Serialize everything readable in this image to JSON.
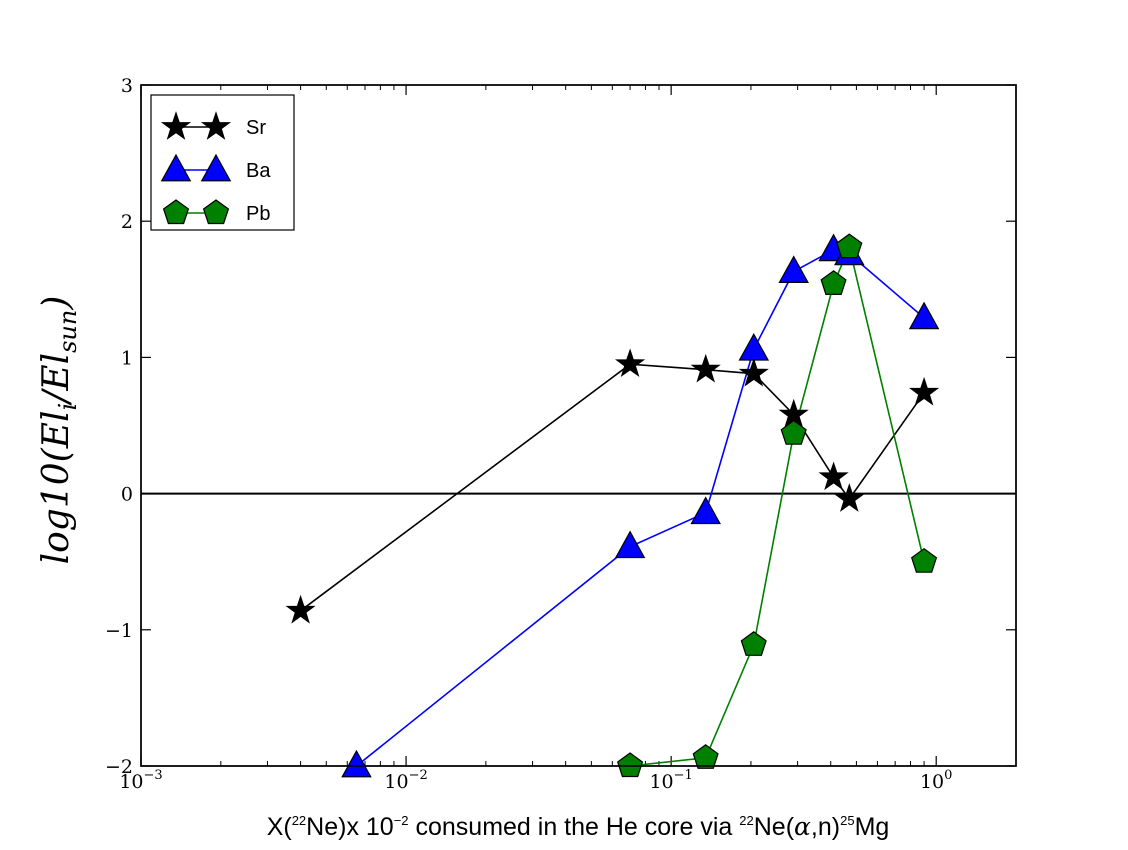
{
  "chart_data": {
    "type": "line",
    "xscale": "log",
    "xlim": [
      0.001,
      2.0
    ],
    "ylim": [
      -2,
      3
    ],
    "xticks": [
      {
        "base": "10",
        "exp": "−3"
      },
      {
        "base": "10",
        "exp": "−2"
      },
      {
        "base": "10",
        "exp": "−1"
      },
      {
        "base": "10",
        "exp": "0"
      }
    ],
    "yticks": [
      "−2",
      "−1",
      "0",
      "1",
      "2",
      "3"
    ],
    "xlabel": {
      "pre": "X(",
      "sup1": "22",
      "mid1": "Ne)x 10",
      "sup2": "−2",
      "mid2": " consumed in the He core via ",
      "sup3": "22",
      "mid3": "Ne(",
      "alpha": "α",
      "mid4": ",n)",
      "sup4": "25",
      "post": "Mg"
    },
    "ylabel": {
      "pre": "log10(El",
      "sub1": "i",
      "mid": "/El",
      "sub2": "sun",
      "post": ")"
    },
    "hline": 0,
    "legend_position": "top-left",
    "series": [
      {
        "name": "Sr",
        "marker": "star",
        "color": "#000000",
        "x": [
          0.004,
          0.07,
          0.135,
          0.205,
          0.29,
          0.41,
          0.47,
          0.9
        ],
        "y": [
          -0.86,
          0.95,
          0.91,
          0.88,
          0.58,
          0.12,
          -0.04,
          0.74
        ]
      },
      {
        "name": "Ba",
        "marker": "triangle",
        "color": "#0000ff",
        "x": [
          0.0065,
          0.07,
          0.135,
          0.205,
          0.29,
          0.41,
          0.47,
          0.9
        ],
        "y": [
          -2.0,
          -0.39,
          -0.14,
          1.06,
          1.63,
          1.79,
          1.76,
          1.29
        ]
      },
      {
        "name": "Pb",
        "marker": "pentagon",
        "color": "#008000",
        "x": [
          0.07,
          0.135,
          0.205,
          0.29,
          0.41,
          0.47,
          0.9
        ],
        "y": [
          -2.0,
          -1.94,
          -1.11,
          0.44,
          1.54,
          1.81,
          -0.5
        ]
      }
    ]
  }
}
